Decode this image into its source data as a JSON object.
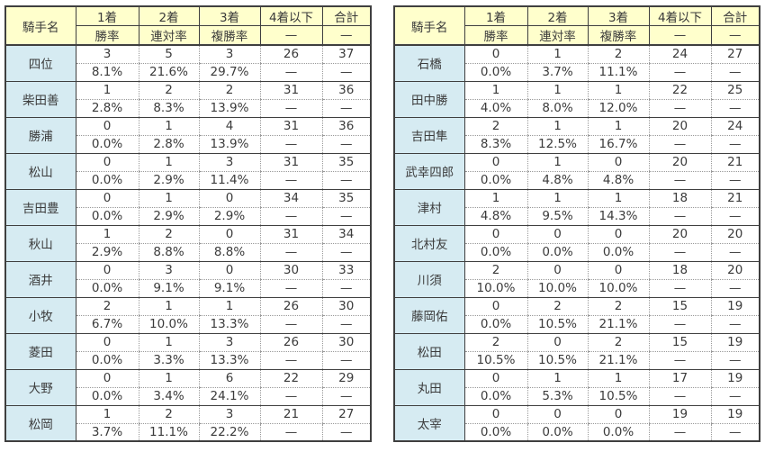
{
  "colors": {
    "header_bg": "#ffffcc",
    "name_bg": "#d6ebf2",
    "border_dark": "#3f3f3f",
    "border_dotted": "#999999",
    "text": "#3b3b3b",
    "bg": "#ffffff"
  },
  "chart_data": [
    {
      "type": "table",
      "position": "left",
      "columns": [
        "騎手名",
        "1着",
        "2着",
        "3着",
        "4着以下",
        "合計"
      ],
      "subcolumns": [
        "",
        "勝率",
        "連対率",
        "複勝率",
        "—",
        "—"
      ],
      "rows": [
        {
          "name": "四位",
          "counts": [
            "3",
            "5",
            "3",
            "26",
            "37"
          ],
          "rates": [
            "8.1%",
            "21.6%",
            "29.7%",
            "—",
            "—"
          ]
        },
        {
          "name": "柴田善",
          "counts": [
            "1",
            "2",
            "2",
            "31",
            "36"
          ],
          "rates": [
            "2.8%",
            "8.3%",
            "13.9%",
            "—",
            "—"
          ]
        },
        {
          "name": "勝浦",
          "counts": [
            "0",
            "1",
            "4",
            "31",
            "36"
          ],
          "rates": [
            "0.0%",
            "2.8%",
            "13.9%",
            "—",
            "—"
          ]
        },
        {
          "name": "松山",
          "counts": [
            "0",
            "1",
            "3",
            "31",
            "35"
          ],
          "rates": [
            "0.0%",
            "2.9%",
            "11.4%",
            "—",
            "—"
          ]
        },
        {
          "name": "吉田豊",
          "counts": [
            "0",
            "1",
            "0",
            "34",
            "35"
          ],
          "rates": [
            "0.0%",
            "2.9%",
            "2.9%",
            "—",
            "—"
          ]
        },
        {
          "name": "秋山",
          "counts": [
            "1",
            "2",
            "0",
            "31",
            "34"
          ],
          "rates": [
            "2.9%",
            "8.8%",
            "8.8%",
            "—",
            "—"
          ]
        },
        {
          "name": "酒井",
          "counts": [
            "0",
            "3",
            "0",
            "30",
            "33"
          ],
          "rates": [
            "0.0%",
            "9.1%",
            "9.1%",
            "—",
            "—"
          ]
        },
        {
          "name": "小牧",
          "counts": [
            "2",
            "1",
            "1",
            "26",
            "30"
          ],
          "rates": [
            "6.7%",
            "10.0%",
            "13.3%",
            "—",
            "—"
          ]
        },
        {
          "name": "菱田",
          "counts": [
            "0",
            "1",
            "3",
            "26",
            "30"
          ],
          "rates": [
            "0.0%",
            "3.3%",
            "13.3%",
            "—",
            "—"
          ]
        },
        {
          "name": "大野",
          "counts": [
            "0",
            "1",
            "6",
            "22",
            "29"
          ],
          "rates": [
            "0.0%",
            "3.4%",
            "24.1%",
            "—",
            "—"
          ]
        },
        {
          "name": "松岡",
          "counts": [
            "1",
            "2",
            "3",
            "21",
            "27"
          ],
          "rates": [
            "3.7%",
            "11.1%",
            "22.2%",
            "—",
            "—"
          ]
        }
      ]
    },
    {
      "type": "table",
      "position": "right",
      "columns": [
        "騎手名",
        "1着",
        "2着",
        "3着",
        "4着以下",
        "合計"
      ],
      "subcolumns": [
        "",
        "勝率",
        "連対率",
        "複勝率",
        "—",
        "—"
      ],
      "rows": [
        {
          "name": "石橋",
          "counts": [
            "0",
            "1",
            "2",
            "24",
            "27"
          ],
          "rates": [
            "0.0%",
            "3.7%",
            "11.1%",
            "—",
            "—"
          ]
        },
        {
          "name": "田中勝",
          "counts": [
            "1",
            "1",
            "1",
            "22",
            "25"
          ],
          "rates": [
            "4.0%",
            "8.0%",
            "12.0%",
            "—",
            "—"
          ]
        },
        {
          "name": "吉田隼",
          "counts": [
            "2",
            "1",
            "1",
            "20",
            "24"
          ],
          "rates": [
            "8.3%",
            "12.5%",
            "16.7%",
            "—",
            "—"
          ]
        },
        {
          "name": "武幸四郎",
          "counts": [
            "0",
            "1",
            "0",
            "20",
            "21"
          ],
          "rates": [
            "0.0%",
            "4.8%",
            "4.8%",
            "—",
            "—"
          ]
        },
        {
          "name": "津村",
          "counts": [
            "1",
            "1",
            "1",
            "18",
            "21"
          ],
          "rates": [
            "4.8%",
            "9.5%",
            "14.3%",
            "—",
            "—"
          ]
        },
        {
          "name": "北村友",
          "counts": [
            "0",
            "0",
            "0",
            "20",
            "20"
          ],
          "rates": [
            "0.0%",
            "0.0%",
            "0.0%",
            "—",
            "—"
          ]
        },
        {
          "name": "川須",
          "counts": [
            "2",
            "0",
            "0",
            "18",
            "20"
          ],
          "rates": [
            "10.0%",
            "10.0%",
            "10.0%",
            "—",
            "—"
          ]
        },
        {
          "name": "藤岡佑",
          "counts": [
            "0",
            "2",
            "2",
            "15",
            "19"
          ],
          "rates": [
            "0.0%",
            "10.5%",
            "21.1%",
            "—",
            "—"
          ]
        },
        {
          "name": "松田",
          "counts": [
            "2",
            "0",
            "2",
            "15",
            "19"
          ],
          "rates": [
            "10.5%",
            "10.5%",
            "21.1%",
            "—",
            "—"
          ]
        },
        {
          "name": "丸田",
          "counts": [
            "0",
            "1",
            "1",
            "17",
            "19"
          ],
          "rates": [
            "0.0%",
            "5.3%",
            "10.5%",
            "—",
            "—"
          ]
        },
        {
          "name": "太宰",
          "counts": [
            "0",
            "0",
            "0",
            "19",
            "19"
          ],
          "rates": [
            "0.0%",
            "0.0%",
            "0.0%",
            "—",
            "—"
          ]
        }
      ]
    }
  ]
}
